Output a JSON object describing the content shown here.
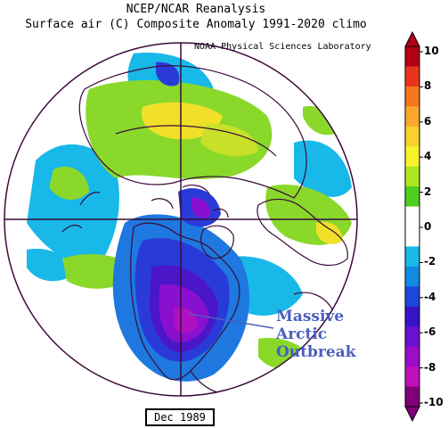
{
  "header": {
    "title_line1": "NCEP/NCAR Reanalysis",
    "title_line2": "Surface air (C) Composite Anomaly 1991-2020 climo",
    "credit": "NOAA Physical Sciences Laboratory"
  },
  "date_label": "Dec 1989",
  "annotation": {
    "line1": "Massive",
    "line2": "Arctic",
    "line3": "Outbreak"
  },
  "colorbar": {
    "labels": [
      "10",
      "8",
      "6",
      "4",
      "2",
      "0",
      "-2",
      "-4",
      "-6",
      "-8",
      "-10"
    ],
    "colors": [
      "#b30017",
      "#e8341c",
      "#f6761e",
      "#fba62c",
      "#f7d22c",
      "#f7f22c",
      "#aee61e",
      "#4fcf1f",
      "#ffffff",
      "#ffffff",
      "#18b8e8",
      "#128ae0",
      "#1e48d8",
      "#3814c8",
      "#6a10d0",
      "#9a0ec8",
      "#c010b8",
      "#800078"
    ]
  },
  "map_colors": {
    "light_blue": "#18b8e8",
    "mid_blue": "#1e78e0",
    "blue": "#2a3ad8",
    "indigo": "#4a16c8",
    "purple": "#8a10d0",
    "magenta": "#b010c0",
    "green": "#8ad82a",
    "yellow_green": "#c8e02a",
    "yellow": "#f0e02a",
    "coastline": "#3a0a3a"
  }
}
